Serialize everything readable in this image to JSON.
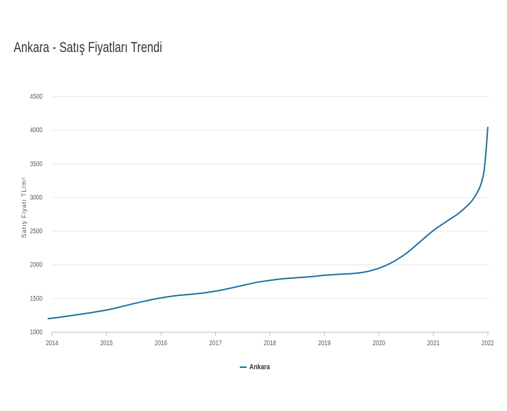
{
  "title": "Ankara - Satış Fiyatları Trendi",
  "chart_data": {
    "type": "line",
    "title": "Ankara - Satış Fiyatları Trendi",
    "xlabel": "",
    "ylabel": "Satış Fiyatı TL/m²",
    "xlim": [
      2014,
      2022
    ],
    "ylim": [
      1000,
      4500
    ],
    "x_ticks": [
      "2014",
      "2015",
      "2016",
      "2017",
      "2018",
      "2019",
      "2020",
      "2021",
      "2022"
    ],
    "y_ticks": [
      "1000",
      "1500",
      "2000",
      "2500",
      "3000",
      "3500",
      "4000",
      "4500"
    ],
    "grid": true,
    "legend_position": "bottom-center",
    "series": [
      {
        "name": "Ankara",
        "color": "#1a6fa0",
        "x": [
          2013.92,
          2014.25,
          2014.5,
          2014.75,
          2015.0,
          2015.25,
          2015.5,
          2015.75,
          2016.0,
          2016.25,
          2016.5,
          2016.75,
          2017.0,
          2017.25,
          2017.5,
          2017.75,
          2018.0,
          2018.25,
          2018.5,
          2018.75,
          2019.0,
          2019.25,
          2019.5,
          2019.75,
          2020.0,
          2020.25,
          2020.5,
          2020.75,
          2021.0,
          2021.25,
          2021.5,
          2021.75,
          2021.92,
          2022.0
        ],
        "y": [
          1200,
          1235,
          1265,
          1295,
          1330,
          1375,
          1425,
          1470,
          1510,
          1540,
          1560,
          1580,
          1610,
          1650,
          1695,
          1740,
          1770,
          1795,
          1810,
          1825,
          1845,
          1860,
          1870,
          1895,
          1950,
          2040,
          2170,
          2340,
          2510,
          2650,
          2790,
          3000,
          3340,
          4050
        ]
      }
    ]
  }
}
